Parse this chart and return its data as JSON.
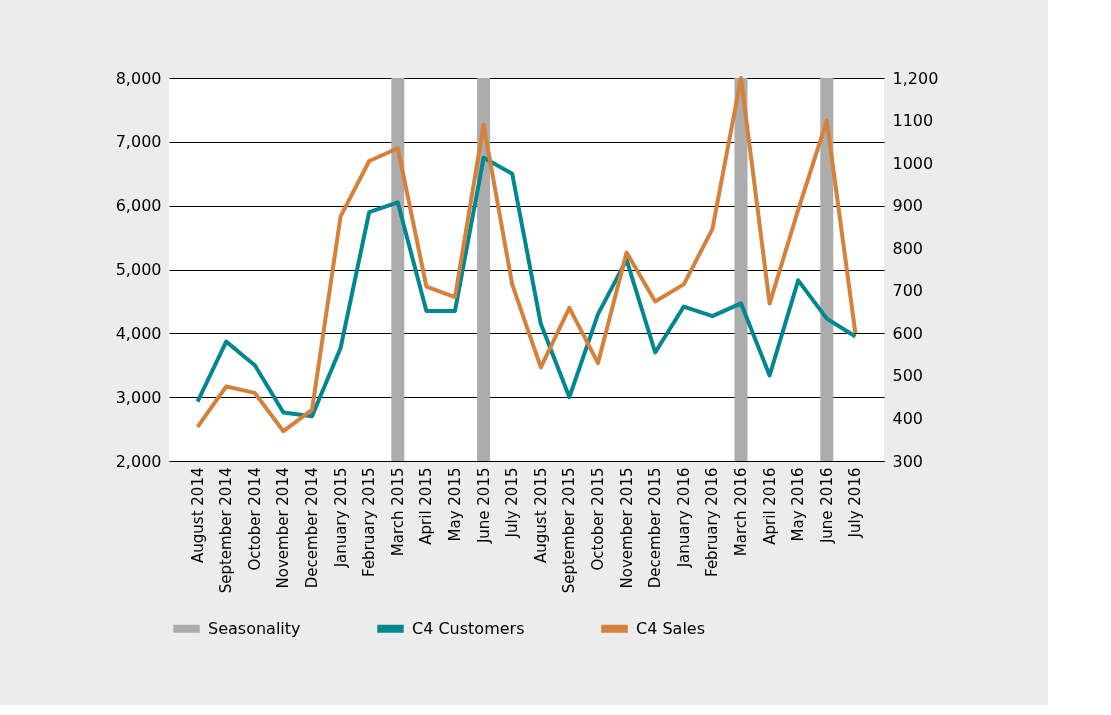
{
  "chart_data": {
    "type": "line",
    "categories": [
      "August 2014",
      "September 2014",
      "October 2014",
      "November 2014",
      "December 2014",
      "January 2015",
      "February 2015",
      "March 2015",
      "April 2015",
      "May 2015",
      "June 2015",
      "July 2015",
      "August 2015",
      "September 2015",
      "October 2015",
      "November 2015",
      "December 2015",
      "January 2016",
      "February 2016",
      "March 2016",
      "April 2016",
      "May 2016",
      "June 2016",
      "July 2016"
    ],
    "series": [
      {
        "name": "Seasonality",
        "type": "bar",
        "color": "#acacac",
        "values": [
          null,
          null,
          null,
          null,
          null,
          null,
          null,
          8000,
          null,
          null,
          8000,
          null,
          null,
          null,
          null,
          null,
          null,
          null,
          null,
          8000,
          null,
          null,
          8000,
          null
        ]
      },
      {
        "name": "C4 Customers",
        "color": "#00878f",
        "values": [
          2930,
          3870,
          3500,
          2760,
          2700,
          3770,
          5900,
          6050,
          4350,
          4350,
          6750,
          6500,
          4150,
          3000,
          4300,
          5150,
          3700,
          4420,
          4270,
          4470,
          3340,
          4830,
          4230,
          3950
        ]
      },
      {
        "name": "C4 Sales",
        "axis": "y2",
        "color": "#d5803b",
        "values": [
          380,
          475,
          460,
          370,
          420,
          875,
          1005,
          1035,
          710,
          685,
          1090,
          715,
          520,
          660,
          530,
          790,
          675,
          715,
          845,
          1200,
          670,
          890,
          1100,
          600
        ]
      }
    ],
    "ylim": [
      2000,
      8000
    ],
    "yticks": [
      {
        "value": 2000,
        "label": "2,000"
      },
      {
        "value": 3000,
        "label": "3,000"
      },
      {
        "value": 4000,
        "label": "4,000"
      },
      {
        "value": 5000,
        "label": "5,000"
      },
      {
        "value": 6000,
        "label": "6,000"
      },
      {
        "value": 7000,
        "label": "7,000"
      },
      {
        "value": 8000,
        "label": "8,000"
      }
    ],
    "y2lim": [
      300,
      1200
    ],
    "y2ticks": [
      300,
      400,
      500,
      600,
      700,
      800,
      900,
      1000,
      1100,
      {
        "value": 1200,
        "label": "1,200"
      }
    ],
    "grid": "y",
    "legend": "bottom",
    "marker": "none",
    "line_style": "solid"
  }
}
